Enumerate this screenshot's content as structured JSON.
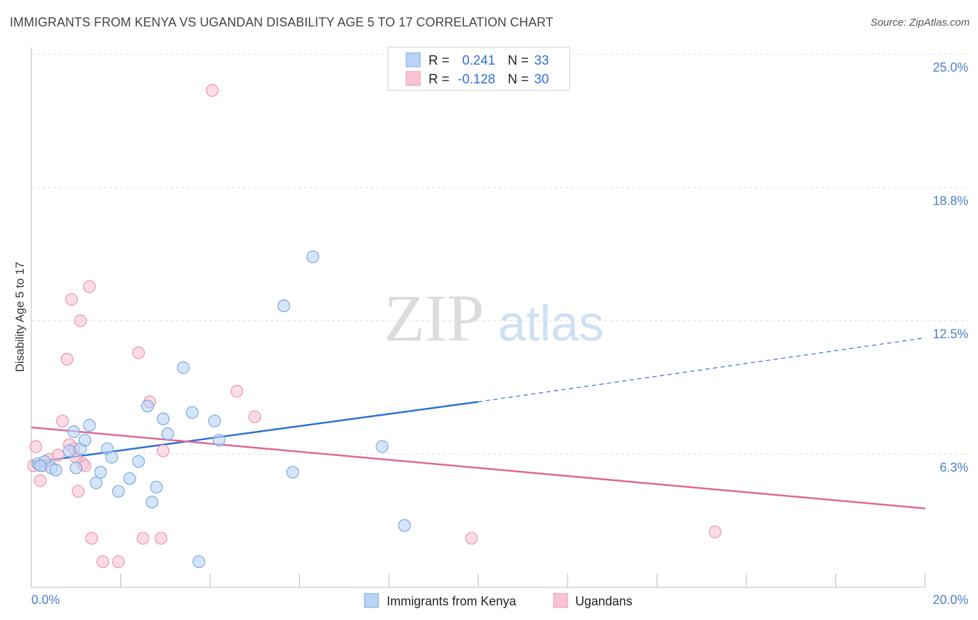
{
  "title": "IMMIGRANTS FROM KENYA VS UGANDAN DISABILITY AGE 5 TO 17 CORRELATION CHART",
  "source": "Source: ZipAtlas.com",
  "watermark": {
    "zip": "ZIP",
    "atlas": "atlas"
  },
  "colors": {
    "kenya_fill": "#b9d3f5",
    "kenya_stroke": "#7aa7e0",
    "kenya_line": "#2a6fd4",
    "uganda_fill": "#f8c4d4",
    "uganda_stroke": "#eb93b0",
    "uganda_line": "#e06595",
    "grid": "#dddddd",
    "axis_label": "#4a7fd0"
  },
  "legend": {
    "rows": [
      {
        "r_label": "R =",
        "r_value": "0.241",
        "n_label": "N =",
        "n_value": "33",
        "series": "kenya"
      },
      {
        "r_label": "R =",
        "r_value": "-0.128",
        "n_label": "N =",
        "n_value": "30",
        "series": "uganda"
      }
    ]
  },
  "chart_data": {
    "type": "scatter",
    "title": "IMMIGRANTS FROM KENYA VS UGANDAN DISABILITY AGE 5 TO 17 CORRELATION CHART",
    "xlabel": "",
    "ylabel": "Disability Age 5 to 17",
    "xlim": [
      0,
      20
    ],
    "ylim": [
      0,
      25
    ],
    "x_tick_labels": [
      "0.0%",
      "20.0%"
    ],
    "y_ticks": [
      {
        "value": 6.25,
        "label": "6.3%"
      },
      {
        "value": 12.5,
        "label": "12.5%"
      },
      {
        "value": 18.75,
        "label": "18.8%"
      },
      {
        "value": 25.0,
        "label": "25.0%"
      }
    ],
    "series": [
      {
        "name": "Immigrants from Kenya",
        "key": "kenya",
        "r": 0.241,
        "n": 33,
        "points": [
          [
            0.15,
            5.8
          ],
          [
            0.3,
            5.9
          ],
          [
            0.45,
            5.6
          ],
          [
            0.55,
            5.5
          ],
          [
            0.85,
            6.4
          ],
          [
            0.95,
            7.3
          ],
          [
            1.0,
            5.6
          ],
          [
            1.1,
            6.5
          ],
          [
            1.2,
            6.9
          ],
          [
            1.3,
            7.6
          ],
          [
            1.45,
            4.9
          ],
          [
            1.55,
            5.4
          ],
          [
            1.7,
            6.5
          ],
          [
            1.8,
            6.1
          ],
          [
            1.95,
            4.5
          ],
          [
            2.2,
            5.1
          ],
          [
            2.4,
            5.9
          ],
          [
            2.6,
            8.5
          ],
          [
            2.7,
            4.0
          ],
          [
            2.8,
            4.7
          ],
          [
            2.95,
            7.9
          ],
          [
            3.05,
            7.2
          ],
          [
            3.4,
            10.3
          ],
          [
            3.6,
            8.2
          ],
          [
            3.75,
            1.2
          ],
          [
            4.1,
            7.8
          ],
          [
            4.2,
            6.9
          ],
          [
            5.65,
            13.2
          ],
          [
            5.85,
            5.4
          ],
          [
            6.3,
            15.5
          ],
          [
            7.85,
            6.6
          ],
          [
            8.35,
            2.9
          ],
          [
            0.2,
            5.7
          ]
        ],
        "trend": {
          "x0": 0.0,
          "y0": 5.85,
          "x1": 10.0,
          "y1": 8.7,
          "dash_x1": 20.0,
          "dash_y1": 11.7
        }
      },
      {
        "name": "Ugandans",
        "key": "uganda",
        "r": -0.128,
        "n": 30,
        "points": [
          [
            0.1,
            6.6
          ],
          [
            0.2,
            5.0
          ],
          [
            0.25,
            5.7
          ],
          [
            0.4,
            6.0
          ],
          [
            0.6,
            6.2
          ],
          [
            0.7,
            7.8
          ],
          [
            0.8,
            10.7
          ],
          [
            0.85,
            6.7
          ],
          [
            0.9,
            13.5
          ],
          [
            0.95,
            6.5
          ],
          [
            1.0,
            6.1
          ],
          [
            1.05,
            4.5
          ],
          [
            1.1,
            12.5
          ],
          [
            1.15,
            5.8
          ],
          [
            1.2,
            5.7
          ],
          [
            1.3,
            14.1
          ],
          [
            1.35,
            2.3
          ],
          [
            1.6,
            1.2
          ],
          [
            1.95,
            1.2
          ],
          [
            2.4,
            11.0
          ],
          [
            2.5,
            2.3
          ],
          [
            2.65,
            8.7
          ],
          [
            2.9,
            2.3
          ],
          [
            2.95,
            6.4
          ],
          [
            4.05,
            23.3
          ],
          [
            4.6,
            9.2
          ],
          [
            5.0,
            8.0
          ],
          [
            9.85,
            2.3
          ],
          [
            15.3,
            2.6
          ],
          [
            0.05,
            5.7
          ]
        ],
        "trend": {
          "x0": 0.0,
          "y0": 7.5,
          "x1": 20.0,
          "y1": 3.7
        }
      }
    ],
    "legend_position": "top-center",
    "bottom_legend": [
      "Immigrants from Kenya",
      "Ugandans"
    ]
  }
}
